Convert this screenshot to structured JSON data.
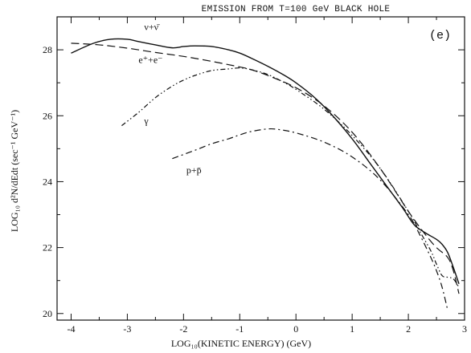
{
  "chart_data": {
    "type": "line",
    "title": "EMISSION FROM T=100 GeV BLACK HOLE",
    "panel_label": "(e)",
    "xlabel": "LOG₁₀(KINETIC ENERGY) (GeV)",
    "ylabel": "LOG₁₀ d²N/dEdt (sec⁻¹ GeV⁻¹)",
    "xlim": [
      -4.25,
      3.0
    ],
    "ylim": [
      19.8,
      29.0
    ],
    "x_ticks": [
      -4,
      -3,
      -2,
      -1,
      0,
      1,
      2,
      3
    ],
    "y_ticks": [
      20,
      22,
      24,
      26,
      28
    ],
    "grid": false,
    "series": [
      {
        "name": "ν+ν̄",
        "style": "solid",
        "x": [
          -4.0,
          -3.6,
          -3.3,
          -3.0,
          -2.8,
          -2.5,
          -2.2,
          -2.0,
          -1.8,
          -1.5,
          -1.2,
          -1.0,
          -0.8,
          -0.5,
          -0.2,
          0.0,
          0.3,
          0.6,
          1.0,
          1.3,
          1.6,
          1.9,
          2.1,
          2.3,
          2.5,
          2.6,
          2.7,
          2.8,
          2.9
        ],
        "y": [
          27.9,
          28.2,
          28.32,
          28.32,
          28.25,
          28.15,
          28.06,
          28.1,
          28.12,
          28.1,
          28.0,
          27.9,
          27.75,
          27.5,
          27.22,
          27.0,
          26.6,
          26.1,
          25.3,
          24.6,
          23.9,
          23.2,
          22.7,
          22.45,
          22.25,
          22.1,
          21.85,
          21.4,
          20.9
        ]
      },
      {
        "name": "e⁺+e⁻",
        "style": "dashed",
        "x": [
          -4.0,
          -3.5,
          -3.0,
          -2.5,
          -2.0,
          -1.5,
          -1.0,
          -0.8,
          -0.5,
          0.0,
          0.5,
          1.0,
          1.5,
          2.0,
          2.3,
          2.5,
          2.7,
          2.8,
          2.9
        ],
        "y": [
          28.2,
          28.15,
          28.05,
          27.92,
          27.8,
          27.65,
          27.48,
          27.4,
          27.22,
          26.85,
          26.3,
          25.5,
          24.4,
          23.1,
          22.4,
          22.0,
          21.7,
          21.3,
          20.6
        ]
      },
      {
        "name": "γ",
        "style": "dash-dot-dot",
        "x": [
          -3.1,
          -2.8,
          -2.5,
          -2.2,
          -2.0,
          -1.8,
          -1.5,
          -1.2,
          -1.0,
          -0.8,
          -0.5,
          -0.2,
          0.0,
          0.5,
          1.0,
          1.5,
          2.0,
          2.2,
          2.4,
          2.5,
          2.6,
          2.7,
          2.8,
          2.9
        ],
        "y": [
          25.7,
          26.1,
          26.55,
          26.9,
          27.08,
          27.22,
          27.37,
          27.42,
          27.45,
          27.4,
          27.25,
          27.0,
          26.8,
          26.2,
          25.4,
          24.4,
          23.1,
          22.5,
          21.9,
          21.5,
          21.15,
          21.1,
          21.05,
          20.8
        ]
      },
      {
        "name": "p+p̄",
        "style": "dash-dot",
        "x": [
          -2.2,
          -1.8,
          -1.5,
          -1.2,
          -1.0,
          -0.8,
          -0.5,
          -0.3,
          0.0,
          0.5,
          1.0,
          1.5,
          2.0,
          2.2,
          2.4,
          2.5,
          2.6,
          2.7
        ],
        "y": [
          24.7,
          24.95,
          25.15,
          25.3,
          25.42,
          25.52,
          25.6,
          25.58,
          25.48,
          25.2,
          24.75,
          24.05,
          23.0,
          22.4,
          21.7,
          21.3,
          20.8,
          20.1
        ]
      }
    ],
    "annotations": [
      {
        "text": "ν+ν̄",
        "x": -2.7,
        "y": 28.6
      },
      {
        "text": "e⁺+e⁻",
        "x": -2.8,
        "y": 27.6
      },
      {
        "text": "γ",
        "x": -2.7,
        "y": 25.75
      },
      {
        "text": "p+p̄",
        "x": -1.95,
        "y": 24.25
      }
    ]
  }
}
